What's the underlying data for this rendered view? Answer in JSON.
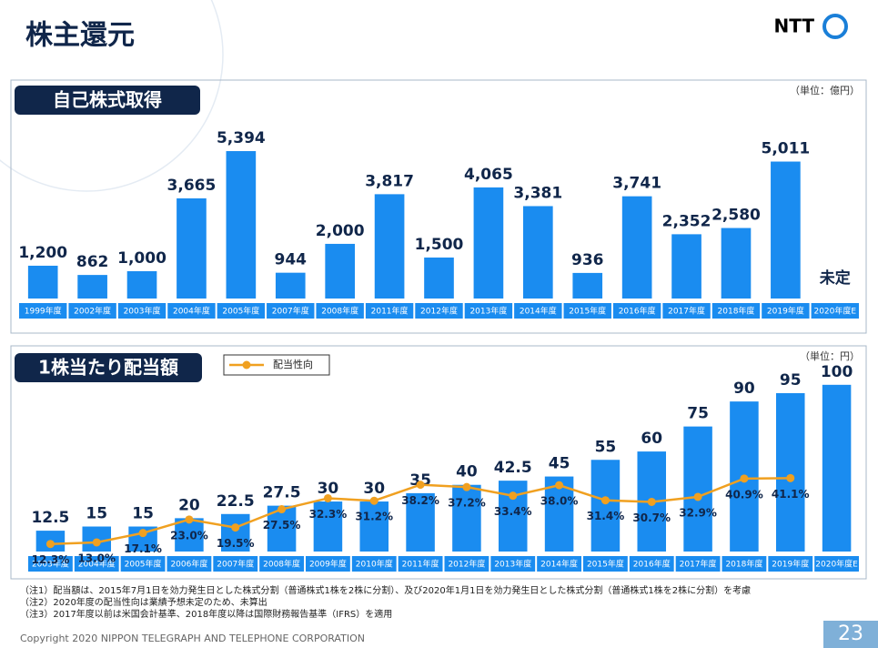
{
  "header": {
    "title": "株主還元",
    "logo": "NTT"
  },
  "chart_data": [
    {
      "type": "bar",
      "title": "自己株式取得",
      "unit": "（単位：億円）",
      "categories": [
        "1999年度",
        "2002年度",
        "2003年度",
        "2004年度",
        "2005年度",
        "2007年度",
        "2008年度",
        "2011年度",
        "2012年度",
        "2013年度",
        "2014年度",
        "2015年度",
        "2016年度",
        "2017年度",
        "2018年度",
        "2019年度",
        "2020年度E"
      ],
      "values": [
        1200,
        862,
        1000,
        3665,
        5394,
        944,
        2000,
        3817,
        1500,
        4065,
        3381,
        936,
        3741,
        2352,
        2580,
        5011,
        null
      ],
      "value_labels": [
        "1,200",
        "862",
        "1,000",
        "3,665",
        "5,394",
        "944",
        "2,000",
        "3,817",
        "1,500",
        "4,065",
        "3,381",
        "936",
        "3,741",
        "2,352",
        "2,580",
        "5,011",
        "未定"
      ],
      "color": "#1a8cf0",
      "ylim": [
        0,
        7260
      ]
    },
    {
      "type": "bar",
      "title": "1株当たり配当額",
      "unit": "（単位：円）",
      "categories": [
        "2003年度",
        "2004年度",
        "2005年度",
        "2006年度",
        "2007年度",
        "2008年度",
        "2009年度",
        "2010年度",
        "2011年度",
        "2012年度",
        "2013年度",
        "2014年度",
        "2015年度",
        "2016年度",
        "2017年度",
        "2018年度",
        "2019年度",
        "2020年度E"
      ],
      "values": [
        12.5,
        15,
        15,
        20,
        22.5,
        27.5,
        30,
        30,
        35,
        40,
        42.5,
        45,
        55,
        60,
        75,
        90,
        95,
        100
      ],
      "color": "#1a8cf0",
      "ylim": [
        0,
        107
      ],
      "line": {
        "name": "配当性向",
        "color": "#f0a020",
        "axis": "y2",
        "values": [
          12.3,
          13.0,
          17.1,
          23.0,
          19.5,
          27.5,
          32.3,
          31.2,
          38.2,
          37.2,
          33.4,
          38.0,
          31.4,
          30.7,
          32.9,
          40.9,
          41.1,
          null
        ],
        "value_labels": [
          "12.3%",
          "13.0%",
          "17.1%",
          "23.0%",
          "19.5%",
          "27.5%",
          "32.3%",
          "31.2%",
          "38.2%",
          "37.2%",
          "33.4%",
          "38.0%",
          "31.4%",
          "30.7%",
          "32.9%",
          "40.9%",
          "41.1%",
          null
        ]
      },
      "y2lim": [
        9,
        87
      ]
    }
  ],
  "footnotes": [
    "（注1）配当額は、2015年7月1日を効力発生日とした株式分割（普通株式1株を2株に分割）、及び2020年1月1日を効力発生日とした株式分割（普通株式1株を2株に分割）を考慮",
    "（注2）2020年度の配当性向は業績予想未定のため、未算出",
    "（注3）2017年度以前は米国会計基準、2018年度以降は国際財務報告基準（IFRS）を適用"
  ],
  "copyright": "Copyright 2020 NIPPON TELEGRAPH AND TELEPHONE CORPORATION",
  "page_number": "23"
}
